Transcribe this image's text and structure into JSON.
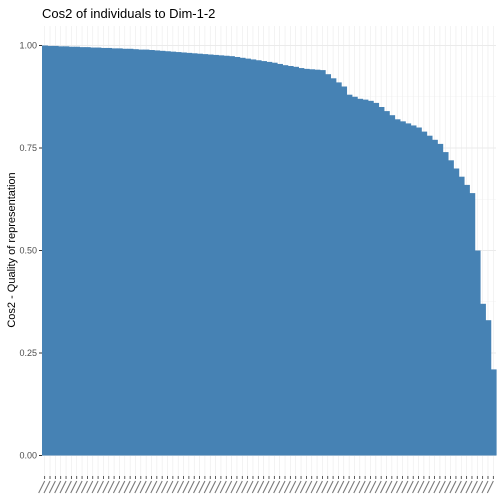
{
  "chart_data": {
    "type": "bar",
    "title": "Cos2 of individuals to Dim-1-2",
    "xlabel": "",
    "ylabel": "Cos2 - Quality of representation",
    "ylim": [
      0,
      1
    ],
    "yticks": [
      "0.00",
      "0.25",
      "0.50",
      "0.75",
      "1.00"
    ],
    "grid": true,
    "sorted": "descending",
    "bar_color": "#4682B4",
    "values": [
      1.0,
      0.999,
      0.999,
      0.998,
      0.998,
      0.997,
      0.997,
      0.996,
      0.996,
      0.995,
      0.995,
      0.994,
      0.994,
      0.993,
      0.993,
      0.992,
      0.992,
      0.991,
      0.99,
      0.99,
      0.989,
      0.988,
      0.987,
      0.986,
      0.985,
      0.984,
      0.983,
      0.982,
      0.981,
      0.98,
      0.979,
      0.978,
      0.977,
      0.976,
      0.975,
      0.974,
      0.972,
      0.97,
      0.968,
      0.966,
      0.964,
      0.962,
      0.96,
      0.958,
      0.955,
      0.952,
      0.95,
      0.948,
      0.945,
      0.943,
      0.942,
      0.941,
      0.94,
      0.93,
      0.92,
      0.91,
      0.9,
      0.88,
      0.875,
      0.87,
      0.868,
      0.865,
      0.86,
      0.85,
      0.84,
      0.83,
      0.82,
      0.815,
      0.81,
      0.805,
      0.8,
      0.79,
      0.78,
      0.77,
      0.76,
      0.74,
      0.72,
      0.7,
      0.68,
      0.66,
      0.64,
      0.5,
      0.37,
      0.33,
      0.21
    ]
  }
}
